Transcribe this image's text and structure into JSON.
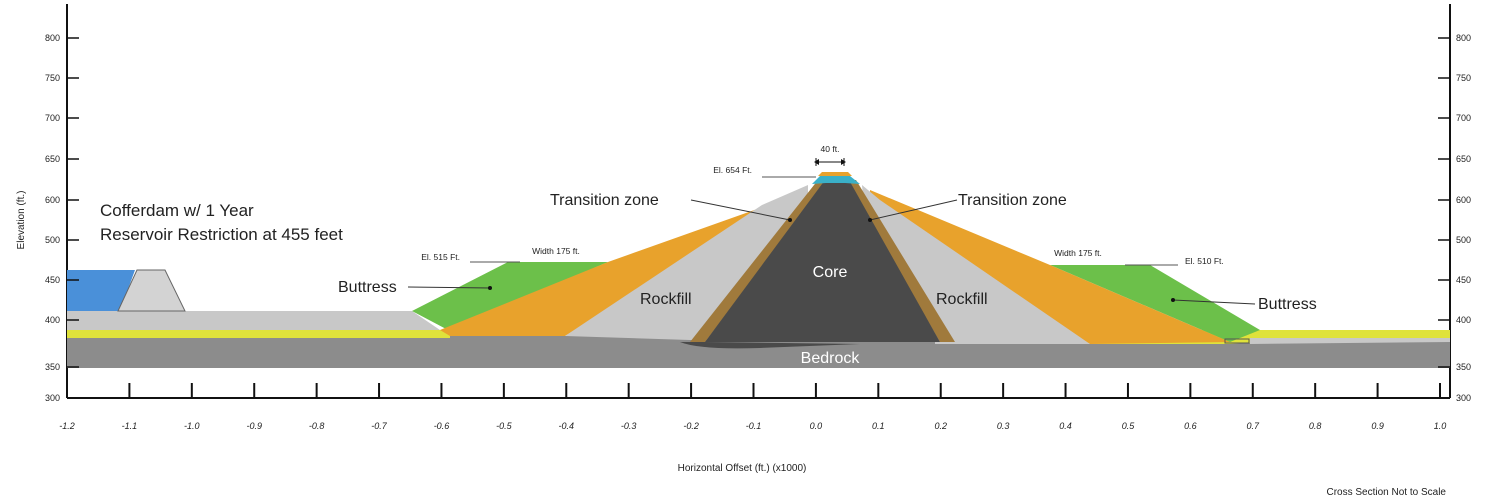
{
  "labels": {
    "cofferdam_line1": "Cofferdam w/ 1 Year",
    "cofferdam_line2": "Reservoir Restriction at 455 feet",
    "transition_left": "Transition zone",
    "transition_right": "Transition zone",
    "rockfill_left": "Rockfill",
    "rockfill_right": "Rockfill",
    "core": "Core",
    "bedrock": "Bedrock",
    "buttress_left": "Buttress",
    "buttress_right": "Buttress",
    "crest_width": "40 ft.",
    "crest_elevation": "El. 654 Ft.",
    "left_elevation": "El. 515 Ft.",
    "left_width": "Width 175 ft.",
    "right_width": "Width 175 ft.",
    "right_elevation": "El. 510 Ft.",
    "y_axis_title": "Elevation (ft.)",
    "x_axis_title": "Horizontal Offset (ft.) (x1000)",
    "note": "Cross Section Not to Scale"
  },
  "y_ticks": [
    "800",
    "750",
    "700",
    "650",
    "600",
    "500",
    "450",
    "400",
    "350",
    "300"
  ],
  "x_ticks": [
    "-1.2",
    "-1.1",
    "-1.0",
    "-0.9",
    "-0.8",
    "-0.7",
    "-0.6",
    "-0.5",
    "-0.4",
    "-0.3",
    "-0.2",
    "-0.1",
    "0.0",
    "0.1",
    "0.2",
    "0.3",
    "0.4",
    "0.5",
    "0.6",
    "0.7",
    "0.8",
    "0.9",
    "1.0"
  ],
  "colors": {
    "water": "#4a90d9",
    "cofferdam": "#d3d3d3",
    "fill_grey": "#c8c8c8",
    "yellow": "#dfe23b",
    "bedrock": "#8c8c8c",
    "buttress": "#6cc04a",
    "rockfill_outer": "#e8a22c",
    "transition": "#a07a3c",
    "core": "#4a4a4a",
    "crest_cap": "#3ab0c8"
  }
}
